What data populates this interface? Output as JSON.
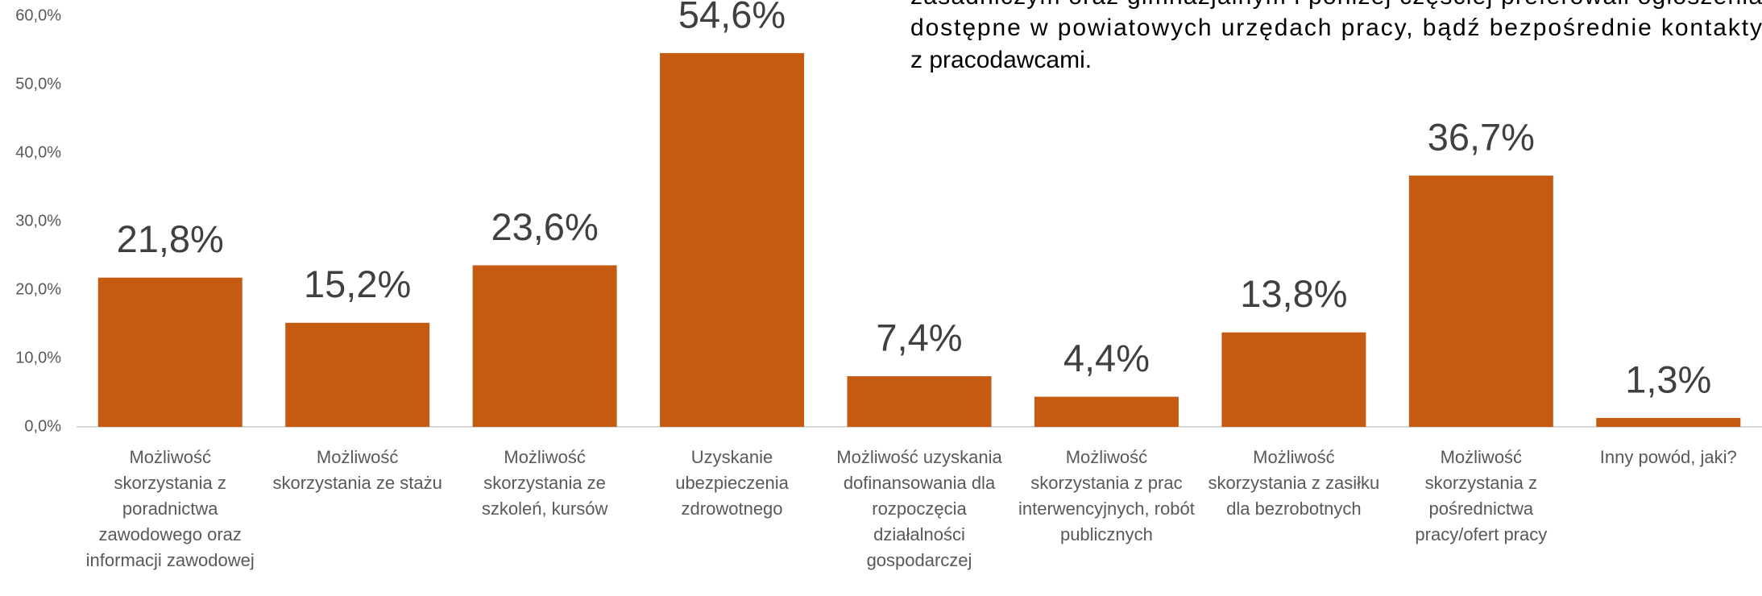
{
  "chart_data": {
    "type": "bar",
    "annotations": [
      "zasadniczym oraz gimnazjalnym i poniżej częściej preferowali ogłoszenia",
      "dostępne w powiatowych urzędach pracy, bądź bezpośrednie kontakty",
      "z pracodawcami."
    ],
    "categories": [
      "Możliwość skorzystania z poradnictwa zawodowego oraz informacji zawodowej",
      "Możliwość skorzystania ze stażu",
      "Możliwość skorzystania ze szkoleń, kursów",
      "Uzyskanie ubezpieczenia zdrowotnego",
      "Możliwość uzyskania dofinansowania dla rozpoczęcia działalności gospodarczej",
      "Możliwość skorzystania z prac interwencyjnych, robót publicznych",
      "Możliwość skorzystania z zasiłku dla bezrobotnych",
      "Możliwość skorzystania z pośrednictwa pracy/ofert pracy",
      "Inny powód, jaki?"
    ],
    "values": [
      21.8,
      15.2,
      23.6,
      54.6,
      7.4,
      4.4,
      13.8,
      36.7,
      1.3
    ],
    "value_labels": [
      "21,8%",
      "15,2%",
      "23,6%",
      "54,6%",
      "7,4%",
      "4,4%",
      "13,8%",
      "36,7%",
      "1,3%"
    ],
    "color": "#c55a11",
    "ylim": [
      0,
      60
    ],
    "yticks": [
      {
        "value": 0,
        "label": "0,0%"
      },
      {
        "value": 10,
        "label": "10,0%"
      },
      {
        "value": 20,
        "label": "20,0%"
      },
      {
        "value": 30,
        "label": "30,0%"
      },
      {
        "value": 40,
        "label": "40,0%"
      },
      {
        "value": 50,
        "label": "50,0%"
      },
      {
        "value": 60,
        "label": "60,0%"
      }
    ],
    "grid": false
  }
}
